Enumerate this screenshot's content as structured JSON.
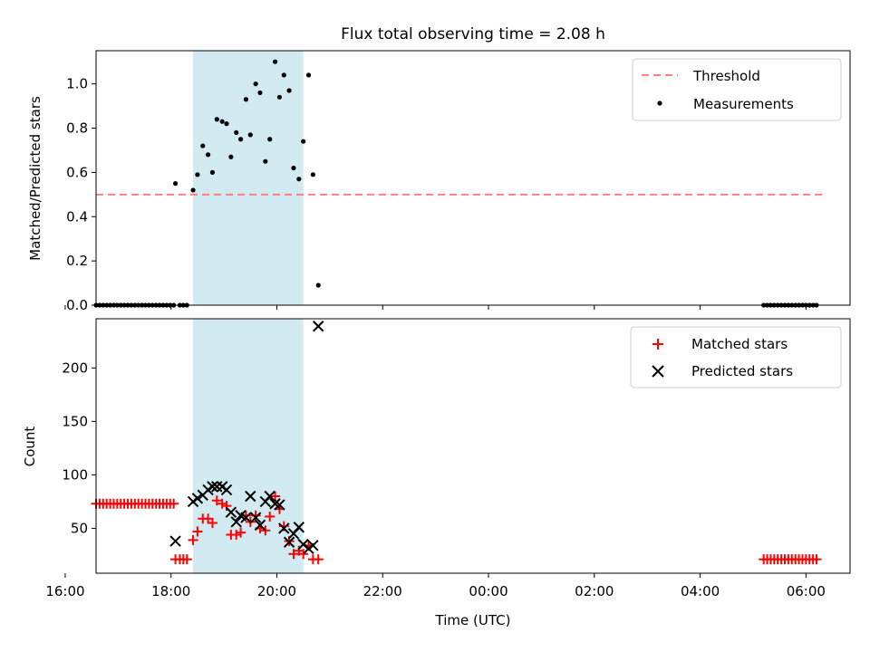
{
  "title": "Flux total observing time = 2.08 h",
  "colors": {
    "threshold": "#ff7f7f",
    "measurement": "#000000",
    "matched": "#ff0000",
    "predicted": "#000000",
    "span": "#add8e6"
  },
  "chart_data": [
    {
      "type": "scatter",
      "ylabel": "Matched/Predicted stars",
      "xlim": [
        "16:35",
        "06:50"
      ],
      "ylim": [
        0,
        1.15
      ],
      "yticks": [
        0.0,
        0.2,
        0.4,
        0.6,
        0.8,
        1.0
      ],
      "ytick_labels": [
        "0.0",
        "0.2",
        "0.4",
        "0.6",
        "0.8",
        "1.0"
      ],
      "shaded_span": [
        "18:25",
        "20:30"
      ],
      "legend": {
        "position": "top-right",
        "entries": [
          "Threshold",
          "Measurements"
        ]
      },
      "threshold": {
        "name": "Threshold",
        "y": 0.5,
        "x_range": [
          "16:35",
          "06:20"
        ]
      },
      "series": [
        {
          "name": "Measurements",
          "points": [
            [
              "16:35",
              0
            ],
            [
              "16:39",
              0
            ],
            [
              "16:43",
              0
            ],
            [
              "16:47",
              0
            ],
            [
              "16:51",
              0
            ],
            [
              "16:55",
              0
            ],
            [
              "16:59",
              0
            ],
            [
              "17:03",
              0
            ],
            [
              "17:07",
              0
            ],
            [
              "17:11",
              0
            ],
            [
              "17:15",
              0
            ],
            [
              "17:19",
              0
            ],
            [
              "17:23",
              0
            ],
            [
              "17:27",
              0
            ],
            [
              "17:31",
              0
            ],
            [
              "17:35",
              0
            ],
            [
              "17:39",
              0
            ],
            [
              "17:43",
              0
            ],
            [
              "17:47",
              0
            ],
            [
              "17:51",
              0
            ],
            [
              "17:55",
              0
            ],
            [
              "17:59",
              0
            ],
            [
              "18:03",
              0
            ],
            [
              "18:05",
              0.55
            ],
            [
              "18:10",
              0
            ],
            [
              "18:14",
              0
            ],
            [
              "18:18",
              0
            ],
            [
              "18:25",
              0.52
            ],
            [
              "18:30",
              0.59
            ],
            [
              "18:36",
              0.72
            ],
            [
              "18:42",
              0.68
            ],
            [
              "18:47",
              0.6
            ],
            [
              "18:52",
              0.84
            ],
            [
              "18:58",
              0.83
            ],
            [
              "19:03",
              0.82
            ],
            [
              "19:08",
              0.67
            ],
            [
              "19:14",
              0.78
            ],
            [
              "19:19",
              0.75
            ],
            [
              "19:25",
              0.93
            ],
            [
              "19:30",
              0.77
            ],
            [
              "19:36",
              1.0
            ],
            [
              "19:41",
              0.96
            ],
            [
              "19:47",
              0.65
            ],
            [
              "19:52",
              0.75
            ],
            [
              "19:58",
              1.1
            ],
            [
              "20:03",
              0.94
            ],
            [
              "20:08",
              1.04
            ],
            [
              "20:14",
              0.97
            ],
            [
              "20:19",
              0.62
            ],
            [
              "20:25",
              0.57
            ],
            [
              "20:30",
              0.74
            ],
            [
              "20:36",
              1.04
            ],
            [
              "20:41",
              0.59
            ],
            [
              "20:47",
              0.09
            ],
            [
              "05:12",
              0
            ],
            [
              "05:16",
              0
            ],
            [
              "05:20",
              0
            ],
            [
              "05:24",
              0
            ],
            [
              "05:28",
              0
            ],
            [
              "05:32",
              0
            ],
            [
              "05:36",
              0
            ],
            [
              "05:40",
              0
            ],
            [
              "05:44",
              0
            ],
            [
              "05:48",
              0
            ],
            [
              "05:52",
              0
            ],
            [
              "05:56",
              0
            ],
            [
              "06:00",
              0
            ],
            [
              "06:04",
              0
            ],
            [
              "06:08",
              0
            ],
            [
              "06:12",
              0
            ]
          ]
        }
      ]
    },
    {
      "type": "scatter",
      "xlabel": "Time (UTC)",
      "ylabel": "Count",
      "xlim": [
        "16:35",
        "06:50"
      ],
      "ylim": [
        8,
        246
      ],
      "xticks": [
        "16:00",
        "18:00",
        "20:00",
        "22:00",
        "00:00",
        "02:00",
        "04:00",
        "06:00"
      ],
      "yticks": [
        50,
        100,
        150,
        200
      ],
      "ytick_labels": [
        "50",
        "100",
        "150",
        "200"
      ],
      "shaded_span": [
        "18:25",
        "20:30"
      ],
      "legend": {
        "position": "top-right",
        "entries": [
          "Matched stars",
          "Predicted stars"
        ]
      },
      "series": [
        {
          "name": "Matched stars",
          "points": [
            [
              "16:35",
              73
            ],
            [
              "16:39",
              73
            ],
            [
              "16:43",
              73
            ],
            [
              "16:47",
              73
            ],
            [
              "16:51",
              73
            ],
            [
              "16:55",
              73
            ],
            [
              "16:59",
              73
            ],
            [
              "17:03",
              73
            ],
            [
              "17:07",
              73
            ],
            [
              "17:11",
              73
            ],
            [
              "17:15",
              73
            ],
            [
              "17:19",
              73
            ],
            [
              "17:23",
              73
            ],
            [
              "17:27",
              73
            ],
            [
              "17:31",
              73
            ],
            [
              "17:35",
              73
            ],
            [
              "17:39",
              73
            ],
            [
              "17:43",
              73
            ],
            [
              "17:47",
              73
            ],
            [
              "17:51",
              73
            ],
            [
              "17:55",
              73
            ],
            [
              "17:59",
              73
            ],
            [
              "18:03",
              73
            ],
            [
              "18:05",
              21
            ],
            [
              "18:10",
              21
            ],
            [
              "18:14",
              21
            ],
            [
              "18:18",
              21
            ],
            [
              "18:25",
              39
            ],
            [
              "18:30",
              47
            ],
            [
              "18:36",
              59
            ],
            [
              "18:42",
              59
            ],
            [
              "18:47",
              55
            ],
            [
              "18:52",
              76
            ],
            [
              "18:58",
              73
            ],
            [
              "19:03",
              71
            ],
            [
              "19:08",
              44
            ],
            [
              "19:14",
              44
            ],
            [
              "19:19",
              46
            ],
            [
              "19:25",
              62
            ],
            [
              "19:30",
              56
            ],
            [
              "19:36",
              62
            ],
            [
              "19:41",
              50
            ],
            [
              "19:47",
              48
            ],
            [
              "19:52",
              61
            ],
            [
              "19:58",
              80
            ],
            [
              "20:03",
              68
            ],
            [
              "20:08",
              52
            ],
            [
              "20:14",
              38
            ],
            [
              "20:19",
              26
            ],
            [
              "20:25",
              29
            ],
            [
              "20:30",
              26
            ],
            [
              "20:36",
              34
            ],
            [
              "20:41",
              21
            ],
            [
              "20:47",
              21
            ],
            [
              "05:12",
              21
            ],
            [
              "05:16",
              21
            ],
            [
              "05:20",
              21
            ],
            [
              "05:24",
              21
            ],
            [
              "05:28",
              21
            ],
            [
              "05:32",
              21
            ],
            [
              "05:36",
              21
            ],
            [
              "05:40",
              21
            ],
            [
              "05:44",
              21
            ],
            [
              "05:48",
              21
            ],
            [
              "05:52",
              21
            ],
            [
              "05:56",
              21
            ],
            [
              "06:00",
              21
            ],
            [
              "06:04",
              21
            ],
            [
              "06:08",
              21
            ],
            [
              "06:12",
              21
            ]
          ]
        },
        {
          "name": "Predicted stars",
          "points": [
            [
              "18:05",
              38
            ],
            [
              "18:25",
              75
            ],
            [
              "18:30",
              78
            ],
            [
              "18:36",
              81
            ],
            [
              "18:42",
              86
            ],
            [
              "18:47",
              89
            ],
            [
              "18:52",
              89
            ],
            [
              "18:58",
              89
            ],
            [
              "19:03",
              86
            ],
            [
              "19:08",
              65
            ],
            [
              "19:14",
              56
            ],
            [
              "19:19",
              62
            ],
            [
              "19:25",
              60
            ],
            [
              "19:30",
              80
            ],
            [
              "19:36",
              60
            ],
            [
              "19:41",
              53
            ],
            [
              "19:47",
              75
            ],
            [
              "19:52",
              80
            ],
            [
              "19:58",
              73
            ],
            [
              "20:03",
              72
            ],
            [
              "20:08",
              50
            ],
            [
              "20:14",
              37
            ],
            [
              "20:19",
              45
            ],
            [
              "20:25",
              51
            ],
            [
              "20:30",
              35
            ],
            [
              "20:36",
              31
            ],
            [
              "20:41",
              34
            ],
            [
              "20:47",
              239
            ]
          ]
        }
      ]
    }
  ]
}
